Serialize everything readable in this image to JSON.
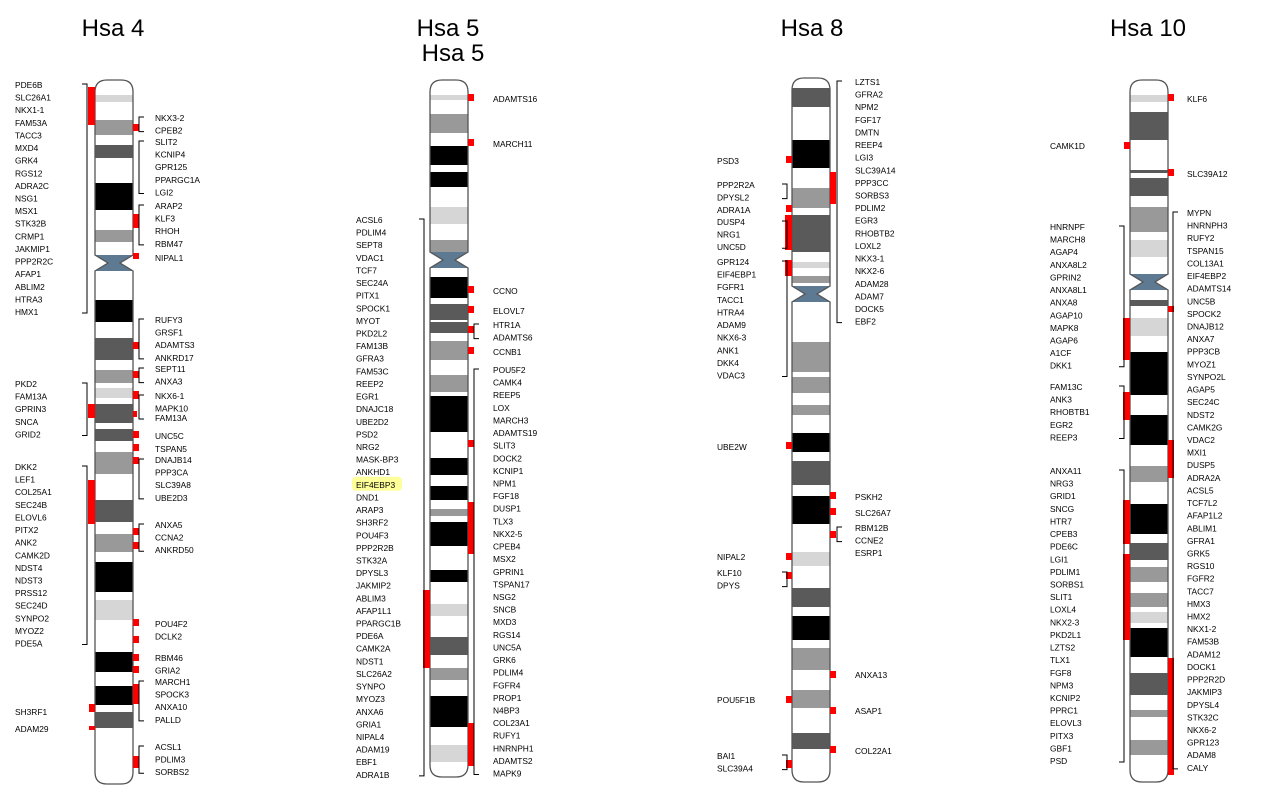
{
  "palette": {
    "black": "#000000",
    "dark": "#5a5a5a",
    "mid": "#999999",
    "light": "#d6d6d6",
    "white": "#ffffff",
    "centromere": "#5e7a92",
    "marker": "#ff0000",
    "highlight": "#ffff99"
  },
  "chromosomes": [
    {
      "id": "hsa4",
      "title": "Hsa 4",
      "title2": "",
      "left_genes": [
        "PDE6B",
        "SLC26A1",
        "NKX1-1",
        "FAM53A",
        "TACC3",
        "MXD4",
        "GRK4",
        "RGS12",
        "ADRA2C",
        "NSG1",
        "MSX1",
        "STK32B",
        "CRMP1",
        "JAKMIP1",
        "PPP2R2C",
        "AFAP1",
        "ABLIM2",
        "HTRA3",
        "HMX1",
        "PKD2",
        "FAM13A",
        "GPRIN3",
        "SNCA",
        "GRID2",
        "DKK2",
        "LEF1",
        "COL25A1",
        "SEC24B",
        "ELOVL6",
        "PITX2",
        "ANK2",
        "CAMK2D",
        "NDST4",
        "NDST3",
        "PRSS12",
        "SEC24D",
        "SYNPO2",
        "MYOZ2",
        "PDE5A",
        "SH3RF1",
        "ADAM29"
      ],
      "right_genes": [
        "NKX3-2",
        "CPEB2",
        "SLIT2",
        "KCNIP4",
        "GPR125",
        "PPARGC1A",
        "LGI2",
        "ARAP2",
        "KLF3",
        "RHOH",
        "RBM47",
        "NIPAL1",
        "RUFY3",
        "GRSF1",
        "ADAMTS3",
        "ANKRD17",
        "SEPT11",
        "ANXA3",
        "NKX6-1",
        "MAPK10",
        "FAM13A",
        "UNC5C",
        "TSPAN5",
        "DNAJB14",
        "PPP3CA",
        "SLC39A8",
        "UBE2D3",
        "ANXA5",
        "CCNA2",
        "ANKRD50",
        "POU4F2",
        "DCLK2",
        "RBM46",
        "GRIA2",
        "MARCH1",
        "SPOCK3",
        "ANXA10",
        "PALLD",
        "ACSL1",
        "PDLIM3",
        "SORBS2"
      ],
      "highlight": ""
    },
    {
      "id": "hsa5",
      "title": "Hsa 5",
      "title2": "Hsa 5",
      "left_genes": [
        "ACSL6",
        "PDLIM4",
        "SEPT8",
        "VDAC1",
        "TCF7",
        "SEC24A",
        "PITX1",
        "SPOCK1",
        "MYOT",
        "PKD2L2",
        "FAM13B",
        "GFRA3",
        "FAM53C",
        "REEP2",
        "EGR1",
        "DNAJC18",
        "UBE2D2",
        "PSD2",
        "NRG2",
        "MASK-BP3",
        "ANKHD1",
        "EIF4EBP3",
        "DND1",
        "ARAP3",
        "SH3RF2",
        "POU4F3",
        "PPP2R2B",
        "STK32A",
        "DPYSL3",
        "JAKMIP2",
        "ABLIM3",
        "AFAP1L1",
        "PPARGC1B",
        "PDE6A",
        "CAMK2A",
        "NDST1",
        "SLC26A2",
        "SYNPO",
        "MYOZ3",
        "ANXA6",
        "GRIA1",
        "NIPAL4",
        "ADAM19",
        "EBF1",
        "ADRA1B"
      ],
      "right_genes": [
        "ADAMTS16",
        "MARCH11",
        "CCNO",
        "ELOVL7",
        "HTR1A",
        "ADAMTS6",
        "CCNB1",
        "POU5F2",
        "CAMK4",
        "REEP5",
        "LOX",
        "MARCH3",
        "ADAMTS19",
        "SLIT3",
        "DOCK2",
        "KCNIP1",
        "NPM1",
        "FGF18",
        "DUSP1",
        "TLX3",
        "NKX2-5",
        "CPEB4",
        "MSX2",
        "GPRIN1",
        "TSPAN17",
        "NSG2",
        "SNCB",
        "MXD3",
        "RGS14",
        "UNC5A",
        "GRK6",
        "PDLIM4",
        "FGFR4",
        "PROP1",
        "N4BP3",
        "COL23A1",
        "RUFY1",
        "HNRNPH1",
        "ADAMTS2",
        "MAPK9"
      ],
      "highlight": "EIF4EBP3"
    },
    {
      "id": "hsa8",
      "title": "Hsa 8",
      "title2": "",
      "left_genes": [
        "PSD3",
        "PPP2R2A",
        "DPYSL2",
        "ADRA1A",
        "DUSP4",
        "NRG1",
        "UNC5D",
        "GPR124",
        "EIF4EBP1",
        "FGFR1",
        "TACC1",
        "HTRA4",
        "ADAM9",
        "NKX6-3",
        "ANK1",
        "DKK4",
        "VDAC3",
        "UBE2W",
        "NIPAL2",
        "KLF10",
        "DPYS",
        "POU5F1B",
        "BAI1",
        "SLC39A4"
      ],
      "right_genes": [
        "LZTS1",
        "GFRA2",
        "NPM2",
        "FGF17",
        "DMTN",
        "REEP4",
        "LGI3",
        "SLC39A14",
        "PPP3CC",
        "SORBS3",
        "PDLIM2",
        "EGR3",
        "RHOBTB2",
        "LOXL2",
        "NKX3-1",
        "NKX2-6",
        "ADAM28",
        "ADAM7",
        "DOCK5",
        "EBF2",
        "PSKH2",
        "SLC26A7",
        "RBM12B",
        "CCNE2",
        "ESRP1",
        "ANXA13",
        "ASAP1",
        "COL22A1"
      ],
      "highlight": ""
    },
    {
      "id": "hsa10",
      "title": "Hsa 10",
      "title2": "",
      "left_genes": [
        "CAMK1D",
        "HNRNPF",
        "MARCH8",
        "AGAP4",
        "ANXA8L2",
        "GPRIN2",
        "ANXA8L1",
        "ANXA8",
        "AGAP10",
        "MAPK8",
        "AGAP6",
        "A1CF",
        "DKK1",
        "FAM13C",
        "ANK3",
        "RHOBTB1",
        "EGR2",
        "REEP3",
        "ANXA11",
        "NRG3",
        "GRID1",
        "SNCG",
        "HTR7",
        "CPEB3",
        "PDE6C",
        "LGI1",
        "PDLIM1",
        "SORBS1",
        "SLIT1",
        "LOXL4",
        "NKX2-3",
        "PKD2L1",
        "LZTS2",
        "TLX1",
        "FGF8",
        "NPM3",
        "KCNIP2",
        "PPRC1",
        "ELOVL3",
        "PITX3",
        "GBF1",
        "PSD"
      ],
      "right_genes": [
        "KLF6",
        "SLC39A12",
        "MYPN",
        "HNRNPH3",
        "RUFY2",
        "TSPAN15",
        "COL13A1",
        "EIF4EBP2",
        "ADAMTS14",
        "UNC5B",
        "SPOCK2",
        "DNAJB12",
        "ANXA7",
        "PPP3CB",
        "MYOZ1",
        "SYNPO2L",
        "AGAP5",
        "SEC24C",
        "NDST2",
        "CAMK2G",
        "VDAC2",
        "MXI1",
        "DUSP5",
        "ADRA2A",
        "ACSL5",
        "TCF7L2",
        "AFAP1L2",
        "ABLIM1",
        "GFRA1",
        "GRK5",
        "RGS10",
        "FGFR2",
        "TACC7",
        "HMX3",
        "HMX2",
        "NKX1-2",
        "FAM53B",
        "ADAM12",
        "DOCK1",
        "PPP2R2D",
        "JAKMIP3",
        "DPYSL4",
        "STK32C",
        "NKX6-2",
        "GPR123",
        "ADAM8",
        "CALY"
      ],
      "highlight": ""
    }
  ]
}
